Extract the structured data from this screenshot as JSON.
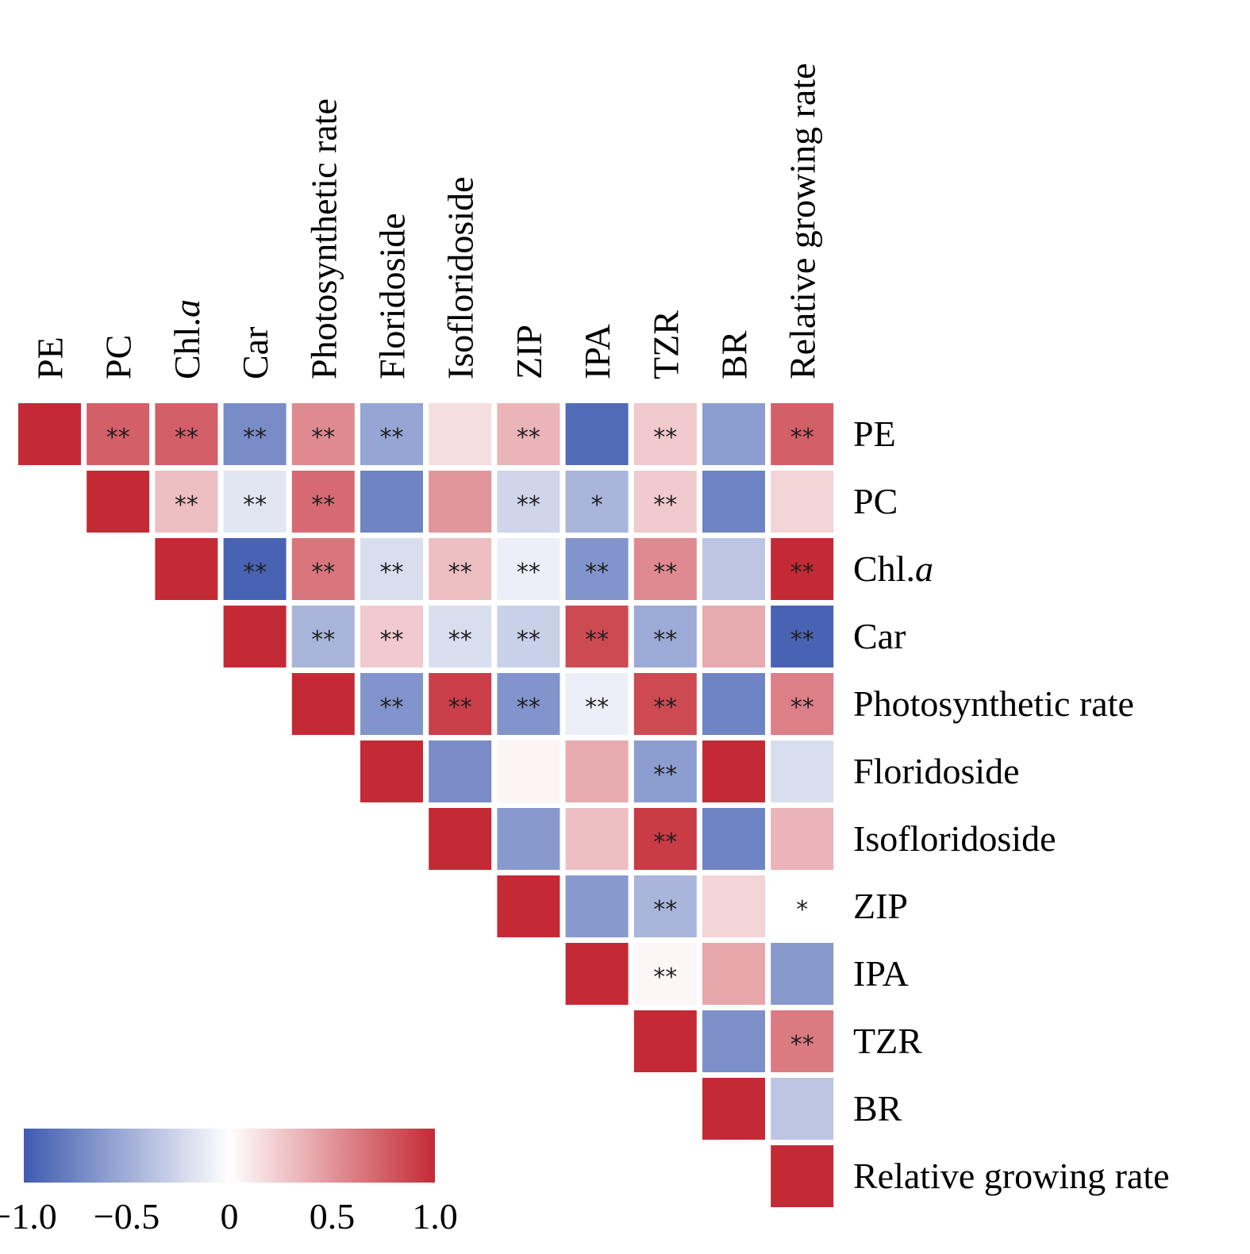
{
  "chart_data": {
    "type": "heatmap",
    "subtype": "upper-triangular correlation matrix",
    "title": "",
    "variables": [
      {
        "name": "PE",
        "italic_suffix": ""
      },
      {
        "name": "PC",
        "italic_suffix": ""
      },
      {
        "name": "Chl.",
        "italic_suffix": "a"
      },
      {
        "name": "Car",
        "italic_suffix": ""
      },
      {
        "name": "Photosynthetic rate",
        "italic_suffix": ""
      },
      {
        "name": "Floridoside",
        "italic_suffix": ""
      },
      {
        "name": "Isofloridoside",
        "italic_suffix": ""
      },
      {
        "name": "ZIP",
        "italic_suffix": ""
      },
      {
        "name": "IPA",
        "italic_suffix": ""
      },
      {
        "name": "TZR",
        "italic_suffix": ""
      },
      {
        "name": "BR",
        "italic_suffix": ""
      },
      {
        "name": "Relative growing rate",
        "italic_suffix": ""
      }
    ],
    "values": [
      [
        1.0,
        0.75,
        0.75,
        -0.7,
        0.55,
        -0.55,
        0.15,
        0.35,
        -0.9,
        0.25,
        -0.6,
        0.75
      ],
      [
        null,
        1.0,
        0.3,
        -0.15,
        0.7,
        -0.75,
        0.5,
        -0.25,
        -0.45,
        0.25,
        -0.75,
        0.2
      ],
      [
        null,
        null,
        1.0,
        -0.95,
        0.65,
        -0.2,
        0.3,
        -0.1,
        -0.65,
        0.55,
        -0.35,
        1.0
      ],
      [
        null,
        null,
        null,
        1.0,
        -0.45,
        0.25,
        -0.2,
        -0.28,
        0.85,
        -0.52,
        0.4,
        -0.95
      ],
      [
        null,
        null,
        null,
        null,
        1.0,
        -0.65,
        0.9,
        -0.65,
        -0.1,
        0.85,
        -0.75,
        0.6
      ],
      [
        null,
        null,
        null,
        null,
        null,
        1.0,
        -0.7,
        0.05,
        0.4,
        -0.6,
        1.0,
        -0.2
      ],
      [
        null,
        null,
        null,
        null,
        null,
        null,
        1.0,
        -0.62,
        0.3,
        0.92,
        -0.75,
        0.35
      ],
      [
        null,
        null,
        null,
        null,
        null,
        null,
        null,
        1.0,
        -0.62,
        -0.45,
        0.2,
        0.0
      ],
      [
        null,
        null,
        null,
        null,
        null,
        null,
        null,
        null,
        1.0,
        0.04,
        0.42,
        -0.62
      ],
      [
        null,
        null,
        null,
        null,
        null,
        null,
        null,
        null,
        null,
        1.0,
        -0.68,
        0.62
      ],
      [
        null,
        null,
        null,
        null,
        null,
        null,
        null,
        null,
        null,
        null,
        1.0,
        -0.35
      ],
      [
        null,
        null,
        null,
        null,
        null,
        null,
        null,
        null,
        null,
        null,
        null,
        1.0
      ]
    ],
    "significance": [
      [
        "",
        "**",
        "**",
        "**",
        "**",
        "**",
        "",
        "**",
        "",
        "**",
        "",
        "**"
      ],
      [
        null,
        "",
        "**",
        "**",
        "**",
        "",
        "",
        "**",
        "*",
        "**",
        "",
        ""
      ],
      [
        null,
        null,
        "",
        "**",
        "**",
        "**",
        "**",
        "**",
        "**",
        "**",
        "",
        "**"
      ],
      [
        null,
        null,
        null,
        "",
        "**",
        "**",
        "**",
        "**",
        "**",
        "**",
        "",
        "**"
      ],
      [
        null,
        null,
        null,
        null,
        "",
        "**",
        "**",
        "**",
        "**",
        "**",
        "",
        "**"
      ],
      [
        null,
        null,
        null,
        null,
        null,
        "",
        "",
        "",
        "",
        "**",
        "",
        ""
      ],
      [
        null,
        null,
        null,
        null,
        null,
        null,
        "",
        "",
        "",
        "**",
        "",
        ""
      ],
      [
        null,
        null,
        null,
        null,
        null,
        null,
        null,
        "",
        "",
        "**",
        "",
        "*"
      ],
      [
        null,
        null,
        null,
        null,
        null,
        null,
        null,
        null,
        "",
        "**",
        "",
        ""
      ],
      [
        null,
        null,
        null,
        null,
        null,
        null,
        null,
        null,
        null,
        "",
        "",
        "**"
      ],
      [
        null,
        null,
        null,
        null,
        null,
        null,
        null,
        null,
        null,
        null,
        "",
        ""
      ],
      [
        null,
        null,
        null,
        null,
        null,
        null,
        null,
        null,
        null,
        null,
        null,
        ""
      ]
    ],
    "column_labels_position": "top (rotated 90°)",
    "row_labels_position": "right",
    "colorbar": {
      "placement": "bottom-left",
      "orientation": "horizontal",
      "range": [
        -1.0,
        1.0
      ],
      "ticks": [
        -1.0,
        -0.5,
        0,
        0.5,
        1.0
      ],
      "tick_labels": [
        "−1.0",
        "−0.5",
        "0",
        "0.5",
        "1.0"
      ],
      "colormap": "coolwarm",
      "color_low": "#3f5bb0",
      "color_mid": "#ffffff",
      "color_high": "#c42a35"
    }
  }
}
